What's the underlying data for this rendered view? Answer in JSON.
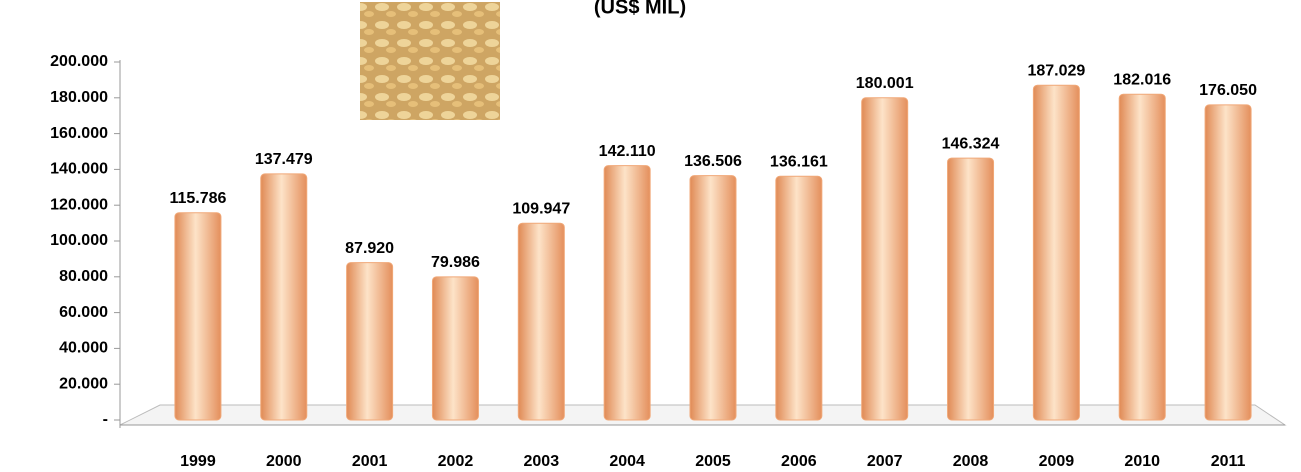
{
  "chart_data": {
    "type": "bar",
    "title": "(US$ MIL)",
    "categories": [
      "1999",
      "2000",
      "2001",
      "2002",
      "2003",
      "2004",
      "2005",
      "2006",
      "2007",
      "2008",
      "2009",
      "2010",
      "2011"
    ],
    "values": [
      115786,
      137479,
      87920,
      79986,
      109947,
      142110,
      136506,
      136161,
      180001,
      146324,
      187029,
      182016,
      176050
    ],
    "value_labels": [
      "115.786",
      "137.479",
      "87.920",
      "79.986",
      "109.947",
      "142.110",
      "136.506",
      "136.161",
      "180.001",
      "146.324",
      "187.029",
      "182.016",
      "176.050"
    ],
    "color": "#f0a878",
    "ylim": [
      0,
      200000
    ],
    "yticks": [
      {
        "value": 0,
        "label": "-"
      },
      {
        "value": 20000,
        "label": "20.000"
      },
      {
        "value": 40000,
        "label": "40.000"
      },
      {
        "value": 60000,
        "label": "60.000"
      },
      {
        "value": 80000,
        "label": "80.000"
      },
      {
        "value": 100000,
        "label": "100.000"
      },
      {
        "value": 120000,
        "label": "120.000"
      },
      {
        "value": 140000,
        "label": "140.000"
      },
      {
        "value": 160000,
        "label": "160.000"
      },
      {
        "value": 180000,
        "label": "180.000"
      },
      {
        "value": 200000,
        "label": "200.000"
      }
    ],
    "grid": false
  }
}
